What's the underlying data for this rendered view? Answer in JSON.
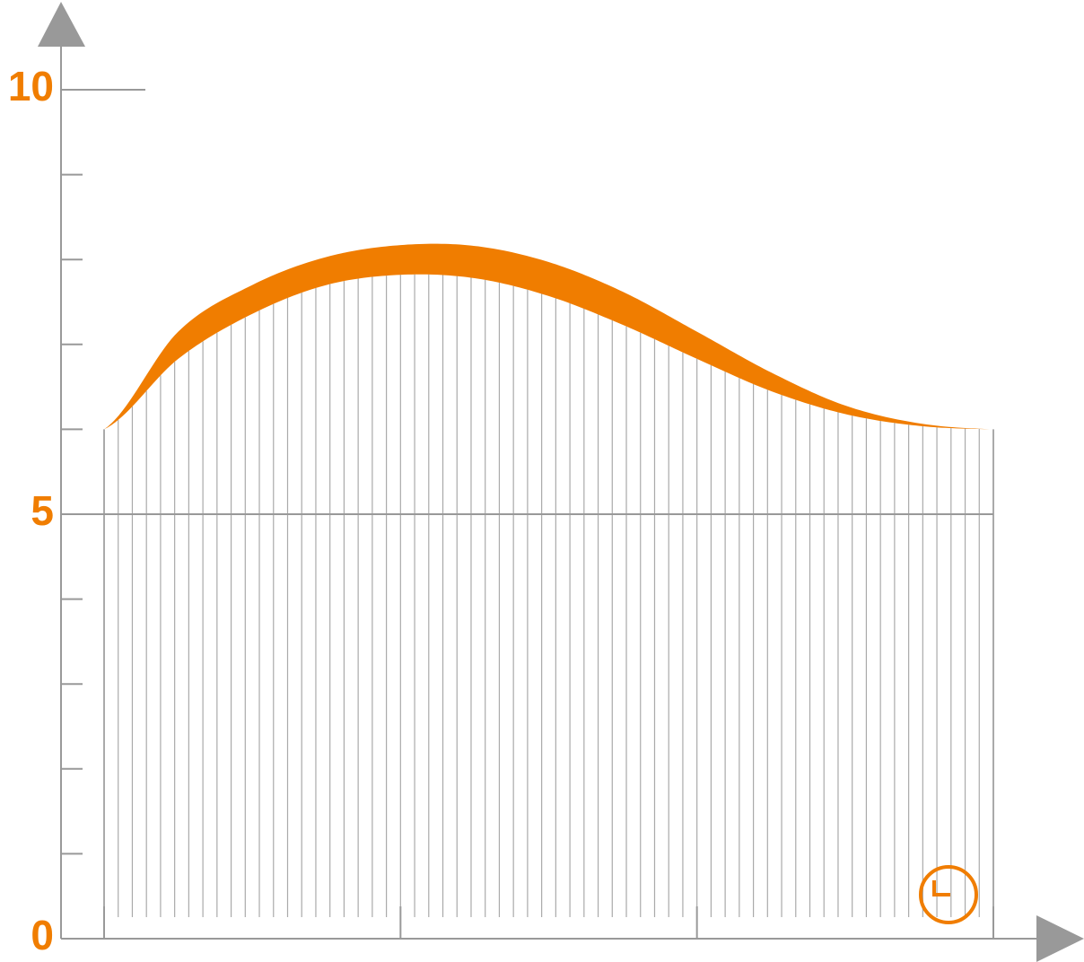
{
  "chart_data": {
    "type": "band",
    "x": [
      0,
      0.25,
      0.5,
      0.75,
      1,
      1.25,
      1.5,
      1.75,
      2,
      2.25,
      2.5,
      2.75,
      3
    ],
    "series": [
      {
        "color": "#f07d00",
        "values": [
          6.0,
          7.15,
          7.7,
          8.03,
          8.17,
          8.16,
          7.97,
          7.62,
          7.15,
          6.67,
          6.28,
          6.07,
          6.0
        ]
      },
      {
        "color": "#f07d00",
        "values": [
          6.0,
          6.83,
          7.36,
          7.7,
          7.82,
          7.78,
          7.57,
          7.23,
          6.83,
          6.45,
          6.18,
          6.04,
          6.0
        ]
      }
    ],
    "xlim": [
      0,
      3
    ],
    "xticks": [
      0,
      1,
      2,
      3
    ],
    "ylim": [
      0,
      10
    ],
    "yticks": [
      0,
      5,
      10
    ],
    "yminor_ticks": [
      1,
      2,
      3,
      4,
      6,
      7,
      8,
      9
    ],
    "axis_color": "#999999",
    "label_color": "#f07d00"
  }
}
